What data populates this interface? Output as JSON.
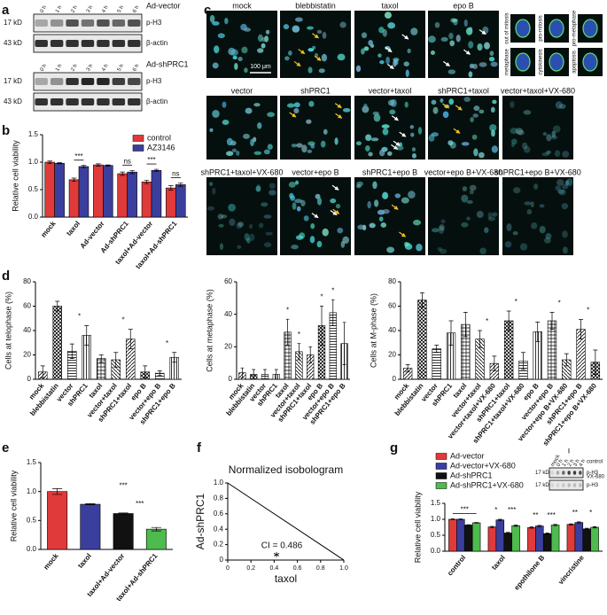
{
  "panel_letters": [
    "a",
    "b",
    "c",
    "d",
    "e",
    "f",
    "g"
  ],
  "blots": {
    "a": [
      {
        "condition": "Ad-vector",
        "lanes": [
          "0 h",
          "1 h",
          "2 h",
          "3 h",
          "4 h",
          "5 h",
          "6 h"
        ],
        "rows": [
          {
            "size": "17 kD",
            "protein": "p-H3"
          },
          {
            "size": "43 kD",
            "protein": "β-actin"
          }
        ]
      },
      {
        "condition": "Ad-shPRC1",
        "lanes": [
          "0 h",
          "1 h",
          "2 h",
          "3 h",
          "4 h",
          "5 h",
          "6 h"
        ],
        "rows": [
          {
            "size": "17 kD",
            "protein": "p-H3"
          },
          {
            "size": "43 kD",
            "protein": "β-actin"
          }
        ]
      }
    ],
    "g": {
      "lanes": [
        "mock",
        "0 h",
        "1 h",
        "2 h",
        "3 h",
        "4 h"
      ],
      "conditions": [
        "control",
        "VX-680"
      ],
      "rows": [
        {
          "size": "17 kD",
          "protein": "p-H3"
        },
        {
          "size": "17 kD",
          "protein": "p-H3"
        }
      ]
    }
  },
  "micrographs": {
    "rows": [
      [
        "mock",
        "blebbistatin",
        "taxol",
        "epo B"
      ],
      [
        "vector",
        "shPRC1",
        "vector+taxol",
        "shPRC1+taxol",
        "vector+taxol+VX-680"
      ],
      [
        "shPRC1+taxol+VX-680",
        "vector+epo B",
        "shPRC1+epo B",
        "vector+epo B+VX-680",
        "shPRC1+epo B+VX-680"
      ]
    ],
    "scale_bar": "100 μm",
    "phases": [
      "out of mitosis",
      "pro-mitosis",
      "pro-metaphase",
      "metaphase",
      "cytokinesis",
      "apoptosis"
    ]
  },
  "chart_data": [
    {
      "type": "bar",
      "ylabel": "Relative cell viability",
      "categories": [
        "mock",
        "taxol",
        "Ad-vector",
        "Ad-shPRC1",
        "taxol+Ad-vector",
        "taxol+Ad-shPRC1"
      ],
      "series": [
        {
          "name": "control",
          "color": "#e03a3a",
          "values": [
            1.0,
            0.68,
            0.95,
            0.79,
            0.64,
            0.53
          ],
          "errors": [
            0.02,
            0.03,
            0.02,
            0.03,
            0.03,
            0.04
          ]
        },
        {
          "name": "AZ3146",
          "color": "#3a3f9e",
          "values": [
            0.98,
            0.92,
            0.94,
            0.82,
            0.85,
            0.59
          ],
          "errors": [
            0.01,
            0.02,
            0.01,
            0.03,
            0.02,
            0.03
          ]
        }
      ],
      "ylim": [
        0,
        1.5
      ],
      "yticks": [
        {
          "value": 0,
          "label": "0.0"
        },
        0.5,
        {
          "value": 1,
          "label": "1.0"
        },
        1.5
      ],
      "annotations": [
        {
          "text": "***",
          "at": [
            "taxol"
          ]
        },
        {
          "text": "ns",
          "at": [
            "Ad-shPRC1"
          ]
        },
        {
          "text": "***",
          "at": [
            "taxol+Ad-vector"
          ]
        },
        {
          "text": "ns",
          "at": [
            "taxol+Ad-shPRC1"
          ]
        }
      ]
    },
    {
      "type": "bar",
      "ylabel": "Cells at telophase (%)",
      "categories": [
        "mock",
        "blebbistatin",
        "vector",
        "shPRC1",
        "taxol",
        "vector+taxol",
        "shPRC1+taxol",
        "epo B",
        "vector+epo B",
        "shPRC1+epo B"
      ],
      "values": [
        6,
        60,
        23,
        36,
        17,
        16,
        33,
        6,
        5,
        18
      ],
      "errors": [
        5,
        4,
        6,
        8,
        3,
        6,
        8,
        5,
        2,
        4
      ],
      "ylim": [
        0,
        80
      ],
      "yticks": [
        0,
        20,
        40,
        60,
        80
      ],
      "annotations": [
        {
          "text": "*",
          "at": [
            "vector",
            "shPRC1"
          ]
        },
        {
          "text": "*",
          "at": [
            "vector+taxol",
            "shPRC1+taxol"
          ]
        },
        {
          "text": "*",
          "at": [
            "vector+epo B",
            "shPRC1+epo B"
          ]
        }
      ]
    },
    {
      "type": "bar",
      "ylabel": "Cells at metaphase (%)",
      "categories": [
        "mock",
        "blebbistatin",
        "vector",
        "shPRC1",
        "taxol",
        "vector+taxol",
        "shPRC1+taxol",
        "epo B",
        "vector+epo B",
        "shPRC1+epo B"
      ],
      "values": [
        4,
        3,
        3,
        3,
        29,
        17,
        15,
        33,
        41,
        22
      ],
      "errors": [
        3,
        3,
        3,
        3,
        8,
        5,
        5,
        12,
        8,
        13
      ],
      "ylim": [
        0,
        60
      ],
      "yticks": [
        0,
        20,
        40,
        60
      ],
      "annotations": [
        {
          "text": "*",
          "at": [
            "taxol"
          ]
        },
        {
          "text": "*",
          "at": [
            "vector+taxol"
          ]
        },
        {
          "text": "*",
          "at": [
            "epo B"
          ]
        },
        {
          "text": "*",
          "at": [
            "vector+epo B"
          ]
        }
      ]
    },
    {
      "type": "bar",
      "ylabel": "Cells at M-phase (%)",
      "categories": [
        "mock",
        "blebbistatin",
        "vector",
        "shPRC1",
        "taxol",
        "vector+taxol",
        "vector+taxol+VX-680",
        "shPRC1+taxol",
        "shPRC1+taxol+VX-680",
        "epo B",
        "vector+epo B",
        "vector+epo B+VX-680",
        "shPRC1+epo B",
        "shPRC1+epo B+VX-680"
      ],
      "values": [
        9,
        65,
        25,
        38,
        45,
        33,
        13,
        48,
        15,
        39,
        48,
        16,
        41,
        14
      ],
      "errors": [
        3,
        6,
        3,
        10,
        10,
        7,
        6,
        8,
        7,
        8,
        7,
        5,
        8,
        10
      ],
      "ylim": [
        0,
        80
      ],
      "yticks": [
        0,
        20,
        40,
        60,
        80
      ],
      "annotations": [
        {
          "text": "*",
          "at": [
            "vector+taxol",
            "vector+taxol+VX-680"
          ]
        },
        {
          "text": "*",
          "at": [
            "shPRC1+taxol",
            "shPRC1+taxol+VX-680"
          ]
        },
        {
          "text": "*",
          "at": [
            "vector+epo B",
            "vector+epo B+VX-680"
          ]
        },
        {
          "text": "*",
          "at": [
            "shPRC1+epo B",
            "shPRC1+epo B+VX-680"
          ]
        }
      ]
    },
    {
      "type": "bar",
      "ylabel": "Relative cell viability",
      "categories": [
        "mock",
        "taxol",
        "taxol+Ad-vector",
        "taxol+Ad-shPRC1"
      ],
      "values": [
        1.0,
        0.78,
        0.62,
        0.35
      ],
      "errors": [
        0.05,
        0.01,
        0.01,
        0.03
      ],
      "colors": [
        "#e03a3a",
        "#3a3f9e",
        "#111111",
        "#4dbb4d"
      ],
      "ylim": [
        0,
        1.5
      ],
      "yticks": [
        {
          "value": 0,
          "label": "0.0"
        },
        0.5,
        {
          "value": 1,
          "label": "1.0"
        },
        1.5
      ],
      "annotations": [
        {
          "text": "***",
          "at": [
            "taxol+Ad-vector",
            "taxol+Ad-shPRC1"
          ]
        },
        {
          "text": "***",
          "at": [
            "taxol",
            "taxol+Ad-shPRC1"
          ]
        }
      ]
    },
    {
      "type": "line",
      "title": "Normalized isobologram",
      "xlabel": "taxol",
      "ylabel": "Ad-shPRC1",
      "x": [
        0,
        1
      ],
      "values": [
        1,
        0
      ],
      "point": {
        "x": 0.42,
        "y": 0.07
      },
      "annotation": "CI = 0.486",
      "xlim": [
        0,
        1
      ],
      "ylim": [
        0,
        1
      ],
      "xticks": [
        0,
        0.2,
        0.4,
        0.6,
        0.8,
        {
          "value": 1,
          "label": "1.0"
        }
      ],
      "yticks": [
        0,
        0.2,
        0.4,
        0.6,
        0.8,
        {
          "value": 1,
          "label": "1.0"
        }
      ]
    },
    {
      "type": "bar",
      "ylabel": "Relative cell viability",
      "categories": [
        "control",
        "taxol",
        "epothilone B",
        "vincristine"
      ],
      "series": [
        {
          "name": "Ad-vector",
          "color": "#e03a3a",
          "values": [
            1.0,
            0.76,
            0.74,
            0.84
          ],
          "errors": [
            0.01,
            0.02,
            0.02,
            0.02
          ]
        },
        {
          "name": "Ad-vector+VX-680",
          "color": "#3a3f9e",
          "values": [
            1.0,
            0.98,
            0.79,
            0.9
          ],
          "errors": [
            0.01,
            0.02,
            0.02,
            0.02
          ]
        },
        {
          "name": "Ad-shPRC1",
          "color": "#111111",
          "values": [
            0.82,
            0.57,
            0.55,
            0.7
          ],
          "errors": [
            0.01,
            0.02,
            0.02,
            0.02
          ]
        },
        {
          "name": "Ad-shPRC1+VX-680",
          "color": "#4dbb4d",
          "values": [
            0.89,
            0.8,
            0.82,
            0.75
          ],
          "errors": [
            0.01,
            0.02,
            0.02,
            0.02
          ]
        }
      ],
      "ylim": [
        0,
        1.5
      ],
      "yticks": [
        {
          "value": 0,
          "label": "0.0"
        },
        0.5,
        {
          "value": 1,
          "label": "1.0"
        },
        1.5
      ],
      "annotations": [
        {
          "text": "***",
          "at": [
            "control"
          ]
        },
        {
          "text": "*",
          "at": [
            "taxol"
          ]
        },
        {
          "text": "***",
          "at": [
            "taxol"
          ]
        },
        {
          "text": "**",
          "at": [
            "epothilone B"
          ]
        },
        {
          "text": "***",
          "at": [
            "epothilone B"
          ]
        },
        {
          "text": "**",
          "at": [
            "vincristine"
          ]
        },
        {
          "text": "*",
          "at": [
            "vincristine"
          ]
        }
      ]
    }
  ]
}
